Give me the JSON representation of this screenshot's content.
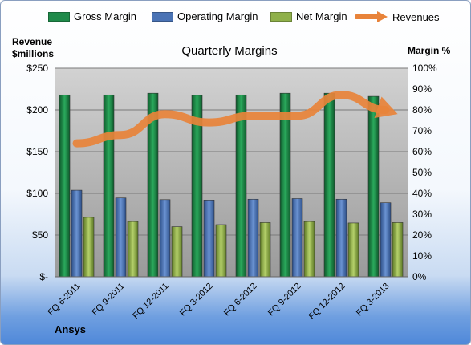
{
  "chart_data": {
    "type": "bar",
    "title": "Quarterly Margins",
    "company": "Ansys",
    "left_axis_title": [
      "Revenue",
      "$millions"
    ],
    "right_axis_title": "Margin %",
    "categories": [
      "FQ 6-2011",
      "FQ 9-2011",
      "FQ 12-2011",
      "FQ 3-2012",
      "FQ 6-2012",
      "FQ 9-2012",
      "FQ 12-2012",
      "FQ 3-2013"
    ],
    "left_ticks": [
      "$250",
      "$200",
      "$150",
      "$100",
      "$50",
      "$-"
    ],
    "right_ticks": [
      "100%",
      "90%",
      "80%",
      "70%",
      "60%",
      "50%",
      "40%",
      "30%",
      "20%",
      "10%",
      "0%"
    ],
    "ylim_left": [
      0,
      250
    ],
    "ylim_right": [
      0,
      100
    ],
    "grid": true,
    "legend_position": "top",
    "series": [
      {
        "name": "Gross Margin",
        "axis": "right",
        "kind": "bar",
        "color": "#1f8a4a",
        "values": [
          87.2,
          87.2,
          88.0,
          87.0,
          87.2,
          88.0,
          88.0,
          86.5
        ]
      },
      {
        "name": "Operating Margin",
        "axis": "right",
        "kind": "bar",
        "color": "#4a73b5",
        "values": [
          41.5,
          37.8,
          37.0,
          36.8,
          37.2,
          37.5,
          37.2,
          35.5
        ]
      },
      {
        "name": "Net Margin",
        "axis": "right",
        "kind": "bar",
        "color": "#8fb04a",
        "values": [
          28.5,
          26.5,
          24.0,
          25.0,
          26.0,
          26.5,
          25.8,
          26.0
        ]
      },
      {
        "name": "Revenues",
        "axis": "left",
        "kind": "line",
        "color": "#e8833a",
        "values": [
          160,
          170,
          195,
          185,
          193,
          193,
          218,
          200
        ]
      }
    ]
  }
}
